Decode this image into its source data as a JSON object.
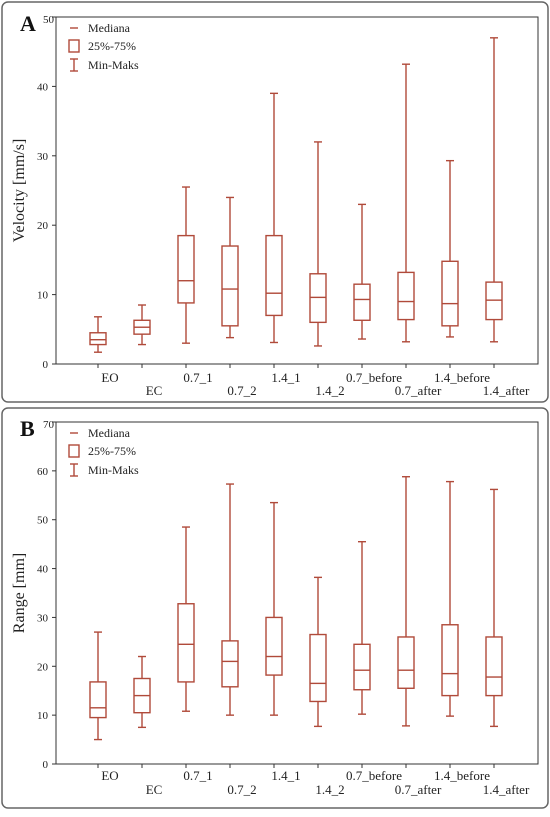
{
  "chart_data": [
    {
      "type": "boxplot",
      "panel_letter": "A",
      "ylabel": "Velocity [mm/s]",
      "ylim": [
        0,
        50
      ],
      "y_ticks": [
        0,
        10,
        20,
        30,
        40,
        50
      ],
      "grid": false,
      "legend_position": "top-left",
      "legend": [
        "Mediana",
        "25%-75%",
        "Min-Maks"
      ],
      "categories": [
        "EO",
        "EC",
        "0.7_1",
        "0.7_2",
        "1.4_1",
        "1.4_2",
        "0.7_before",
        "0.7_after",
        "1.4_before",
        "1.4_after"
      ],
      "series": [
        {
          "min": 1.7,
          "q1": 2.8,
          "median": 3.5,
          "q3": 4.5,
          "max": 6.8
        },
        {
          "min": 2.8,
          "q1": 4.3,
          "median": 5.3,
          "q3": 6.3,
          "max": 8.5
        },
        {
          "min": 3.0,
          "q1": 8.8,
          "median": 12.0,
          "q3": 18.5,
          "max": 25.5
        },
        {
          "min": 3.8,
          "q1": 5.5,
          "median": 10.8,
          "q3": 17.0,
          "max": 24.0
        },
        {
          "min": 3.1,
          "q1": 7.0,
          "median": 10.2,
          "q3": 18.5,
          "max": 39.0
        },
        {
          "min": 2.6,
          "q1": 6.0,
          "median": 9.6,
          "q3": 13.0,
          "max": 32.0
        },
        {
          "min": 3.6,
          "q1": 6.3,
          "median": 9.3,
          "q3": 11.5,
          "max": 23.0
        },
        {
          "min": 3.2,
          "q1": 6.4,
          "median": 9.0,
          "q3": 13.2,
          "max": 43.2
        },
        {
          "min": 3.9,
          "q1": 5.5,
          "median": 8.7,
          "q3": 14.8,
          "max": 29.3
        },
        {
          "min": 3.2,
          "q1": 6.4,
          "median": 9.2,
          "q3": 11.8,
          "max": 47.0
        }
      ]
    },
    {
      "type": "boxplot",
      "panel_letter": "B",
      "ylabel": "Range [mm]",
      "ylim": [
        0,
        70
      ],
      "y_ticks": [
        0,
        10,
        20,
        30,
        40,
        50,
        60,
        70
      ],
      "grid": false,
      "legend_position": "top-left",
      "legend": [
        "Mediana",
        "25%-75%",
        "Min-Maks"
      ],
      "categories": [
        "EO",
        "EC",
        "0.7_1",
        "0.7_2",
        "1.4_1",
        "1.4_2",
        "0.7_before",
        "0.7_after",
        "1.4_before",
        "1.4_after"
      ],
      "series": [
        {
          "min": 5.0,
          "q1": 9.5,
          "median": 11.5,
          "q3": 16.8,
          "max": 27.0
        },
        {
          "min": 7.5,
          "q1": 10.5,
          "median": 14.0,
          "q3": 17.5,
          "max": 22.0
        },
        {
          "min": 10.8,
          "q1": 16.8,
          "median": 24.5,
          "q3": 32.8,
          "max": 48.5
        },
        {
          "min": 10.0,
          "q1": 15.8,
          "median": 21.0,
          "q3": 25.2,
          "max": 57.3
        },
        {
          "min": 10.0,
          "q1": 18.2,
          "median": 22.0,
          "q3": 30.0,
          "max": 53.5
        },
        {
          "min": 7.7,
          "q1": 12.8,
          "median": 16.5,
          "q3": 26.5,
          "max": 38.2
        },
        {
          "min": 10.2,
          "q1": 15.2,
          "median": 19.2,
          "q3": 24.5,
          "max": 45.5
        },
        {
          "min": 7.8,
          "q1": 15.5,
          "median": 19.2,
          "q3": 26.0,
          "max": 58.8
        },
        {
          "min": 9.8,
          "q1": 14.0,
          "median": 18.5,
          "q3": 28.5,
          "max": 57.8
        },
        {
          "min": 7.7,
          "q1": 14.0,
          "median": 17.8,
          "q3": 26.0,
          "max": 56.2
        }
      ]
    }
  ]
}
